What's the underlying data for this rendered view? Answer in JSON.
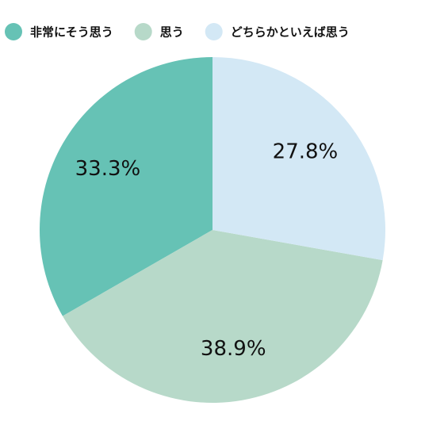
{
  "chart_data": {
    "type": "pie",
    "counterclockwise": true,
    "series": [
      {
        "name": "非常にそう思う",
        "color": "#66c2b5",
        "values": [
          33.3
        ],
        "value_labels": [
          "33.3%"
        ]
      },
      {
        "name": "思う",
        "color": "#b7d9c9",
        "values": [
          38.9
        ],
        "value_labels": [
          "38.9%"
        ]
      },
      {
        "name": "どちらかといえば思う",
        "color": "#d3e8f5",
        "values": [
          27.8
        ],
        "value_labels": [
          "27.8%"
        ]
      }
    ]
  }
}
